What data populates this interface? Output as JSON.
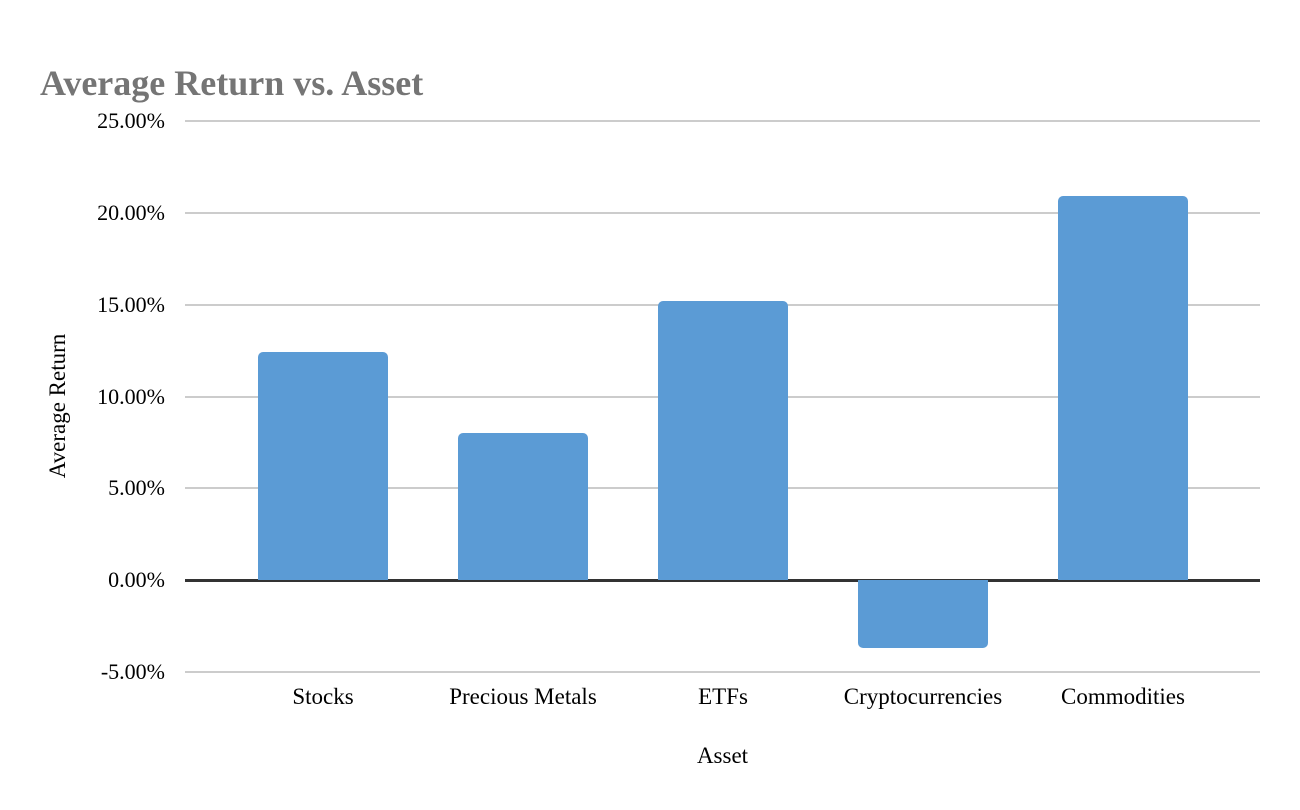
{
  "chart_data": {
    "type": "bar",
    "title": "Average Return vs. Asset",
    "xlabel": "Asset",
    "ylabel": "Average Return",
    "categories": [
      "Stocks",
      "Precious Metals",
      "ETFs",
      "Cryptocurrencies",
      "Commodities"
    ],
    "values": [
      12.4,
      8.0,
      15.2,
      -3.7,
      20.9
    ],
    "value_unit": "percent",
    "ylim": [
      -5,
      25
    ],
    "ytick_values": [
      25,
      20,
      15,
      10,
      5,
      0,
      -5
    ],
    "ytick_labels": [
      "25.00%",
      "20.00%",
      "15.00%",
      "10.00%",
      "5.00%",
      "0.00%",
      "-5.00%"
    ],
    "grid": true,
    "legend_position": "none",
    "bar_color": "#5b9bd5",
    "gridline_color": "#cccccc",
    "zero_line_color": "#333333",
    "title_color": "#757575",
    "tick_label_color": "#000000"
  }
}
